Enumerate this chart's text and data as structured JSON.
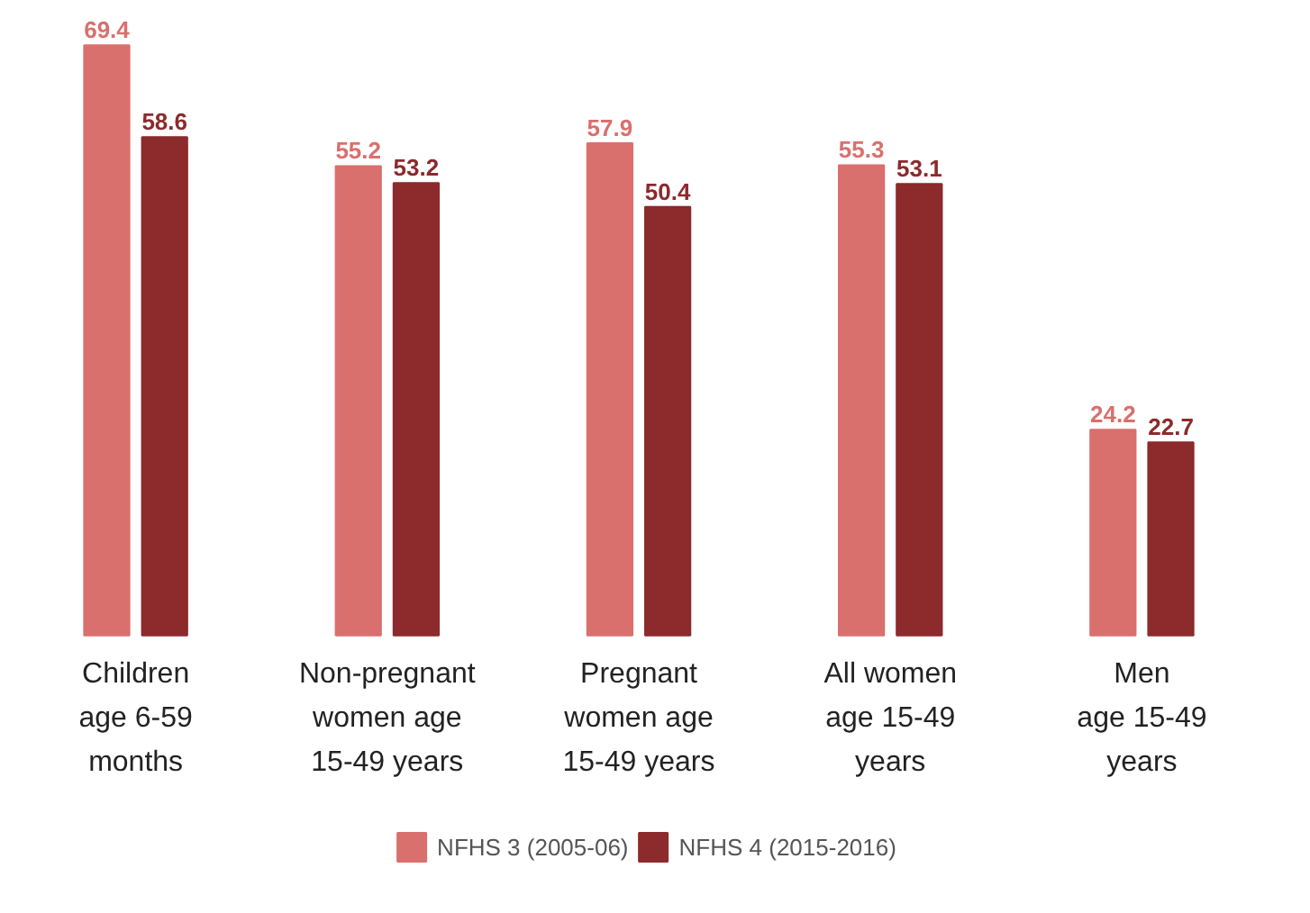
{
  "chart_data": {
    "type": "bar",
    "categories": [
      "Children\nage 6-59\nmonths",
      "Non-pregnant\nwomen age\n15-49 years",
      "Pregnant\nwomen age\n15-49 years",
      "All women\nage 15-49\nyears",
      "Men\nage 15-49\nyears"
    ],
    "series": [
      {
        "name": "NFHS 3 (2005-06)",
        "color": "#d9706d",
        "values": [
          69.4,
          55.2,
          57.9,
          55.3,
          24.2
        ]
      },
      {
        "name": "NFHS 4 (2015-2016)",
        "color": "#8c2a2c",
        "values": [
          58.6,
          53.2,
          50.4,
          53.1,
          22.7
        ]
      }
    ],
    "data_labels": true,
    "legend": "bottom"
  }
}
